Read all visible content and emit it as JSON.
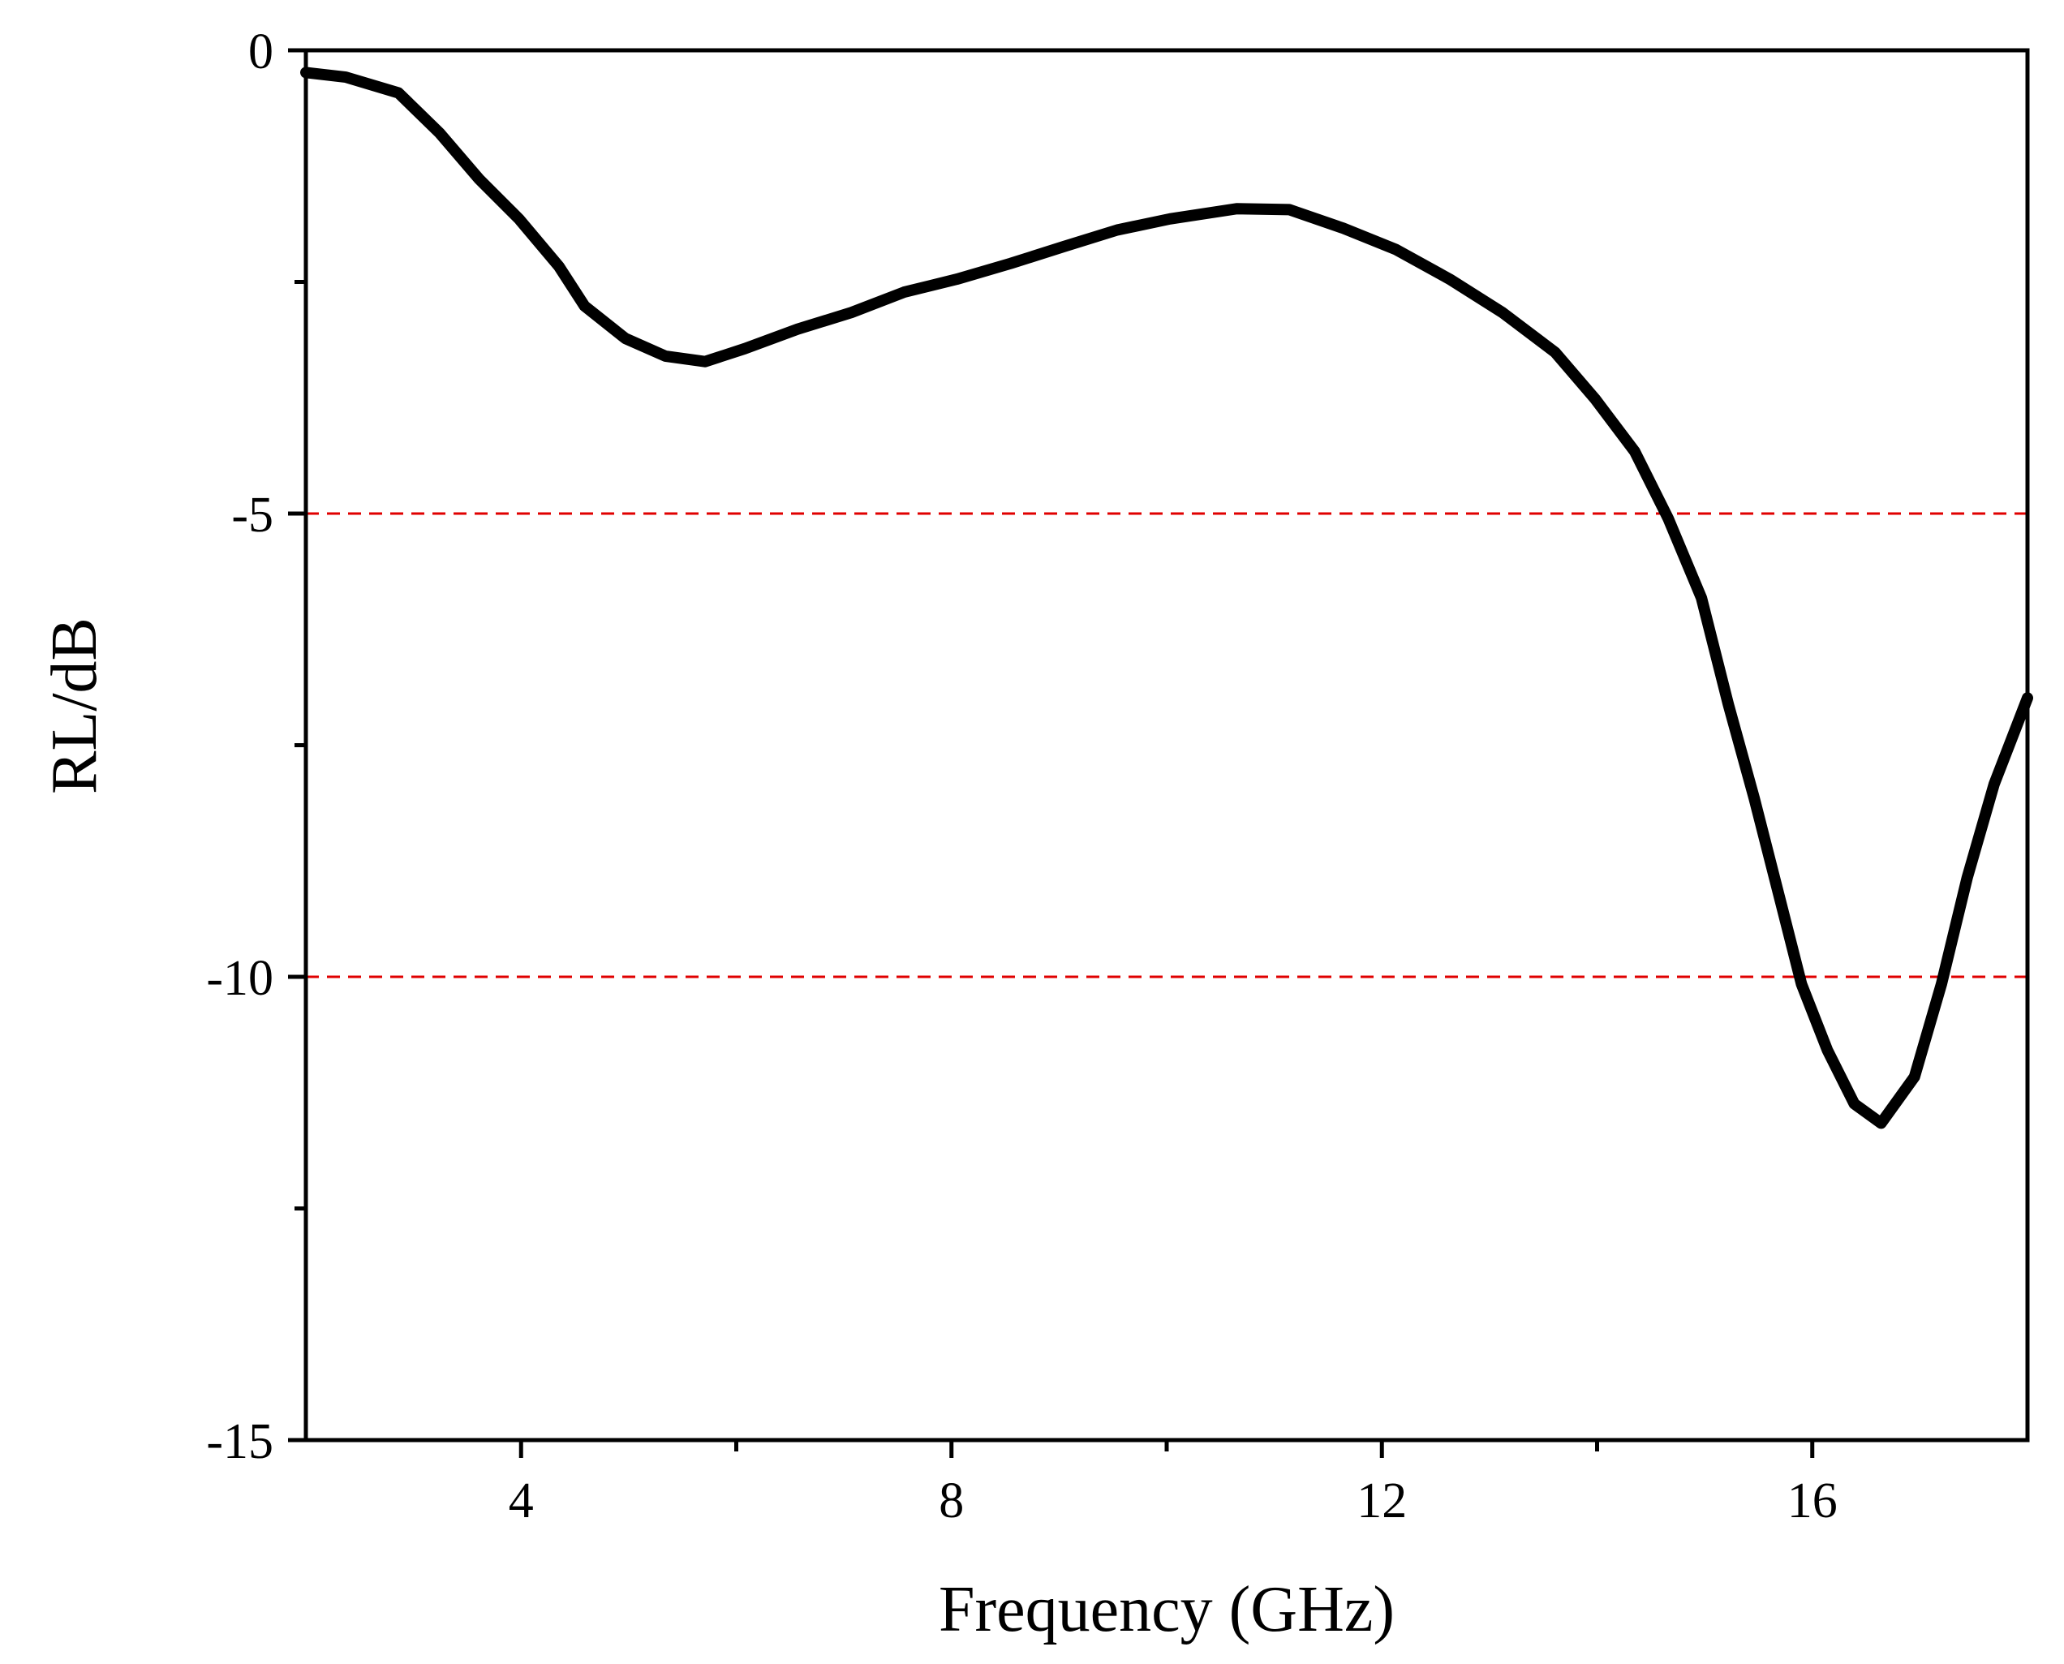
{
  "chart_data": {
    "type": "line",
    "xlabel": "Frequency (GHz)",
    "ylabel": "RL/dB",
    "x": [
      2.0,
      2.37,
      2.86,
      3.24,
      3.61,
      3.98,
      4.35,
      4.59,
      4.97,
      5.34,
      5.71,
      6.08,
      6.57,
      7.07,
      7.56,
      8.05,
      8.55,
      9.04,
      9.54,
      10.03,
      10.65,
      11.14,
      11.64,
      12.13,
      12.63,
      13.12,
      13.61,
      13.98,
      14.35,
      14.66,
      14.97,
      15.22,
      15.46,
      15.71,
      15.9,
      16.14,
      16.39,
      16.64,
      16.95,
      17.2,
      17.44,
      17.69,
      18.0
    ],
    "series": [
      {
        "color": "#000000",
        "values": [
          -0.24,
          -0.29,
          -0.46,
          -0.89,
          -1.39,
          -1.82,
          -2.33,
          -2.76,
          -3.11,
          -3.3,
          -3.36,
          -3.22,
          -3.01,
          -2.83,
          -2.61,
          -2.47,
          -2.3,
          -2.12,
          -1.94,
          -1.82,
          -1.71,
          -1.72,
          -1.92,
          -2.15,
          -2.47,
          -2.83,
          -3.26,
          -3.76,
          -4.33,
          -5.05,
          -5.91,
          -7.06,
          -8.07,
          -9.21,
          -10.08,
          -10.79,
          -11.37,
          -11.58,
          -11.08,
          -10.08,
          -8.93,
          -7.92,
          -6.99
        ]
      }
    ],
    "xlim": [
      2,
      18
    ],
    "xticks": [
      4,
      8,
      12,
      16
    ],
    "xminorticks": [
      6,
      10,
      14
    ],
    "ylim": [
      -15,
      0
    ],
    "yticks": [
      0,
      -5,
      -10,
      -15
    ],
    "yminorticks": [
      -2.5,
      -7.5,
      -12.5
    ],
    "hlines": [
      {
        "value": -5,
        "color": "#e00000"
      },
      {
        "value": -10,
        "color": "#e00000"
      }
    ]
  }
}
